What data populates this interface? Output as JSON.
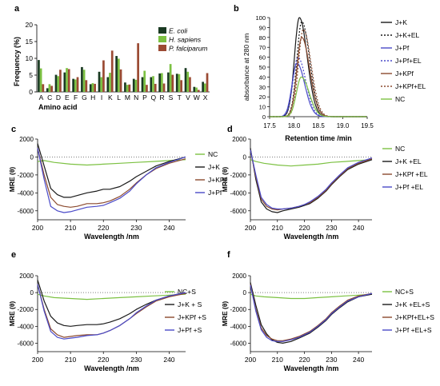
{
  "colors": {
    "ecoli": "#1a3a22",
    "hsap": "#7cc142",
    "pfal": "#9b4a33",
    "black": "#1a1a1a",
    "pf": "#4a4ac8",
    "kpf": "#8b4a2e",
    "nc": "#7cc142",
    "axis": "#000000"
  },
  "chart_data": [
    {
      "panel": "a",
      "type": "bar",
      "xlabel": "Amino acid",
      "ylabel": "Frequency (%)",
      "ylim": [
        0,
        20
      ],
      "yticks": [
        0,
        5,
        10,
        15,
        20
      ],
      "categories": [
        "A",
        "C",
        "D",
        "E",
        "F",
        "G",
        "H",
        "I",
        "K",
        "L",
        "M",
        "N",
        "P",
        "Q",
        "R",
        "S",
        "T",
        "V",
        "W",
        "X"
      ],
      "series": [
        {
          "name": "E. coli",
          "values": [
            9.5,
            1.1,
            5.1,
            5.8,
            3.9,
            7.4,
            2.3,
            6.0,
            4.4,
            10.7,
            2.8,
            3.9,
            4.4,
            4.4,
            5.5,
            5.8,
            5.4,
            7.1,
            1.5,
            3.0
          ]
        },
        {
          "name": "H. sapiens",
          "values": [
            7.0,
            2.3,
            4.7,
            7.1,
            3.7,
            6.6,
            2.6,
            4.4,
            5.7,
            9.9,
            2.1,
            3.6,
            6.3,
            4.7,
            5.6,
            8.3,
            5.3,
            6.0,
            1.3,
            2.5
          ]
        },
        {
          "name": "P. falciparum",
          "values": [
            2.3,
            1.8,
            6.6,
            6.8,
            4.4,
            3.5,
            2.4,
            9.4,
            12.3,
            6.7,
            2.2,
            14.5,
            2.1,
            2.4,
            2.5,
            5.1,
            3.5,
            4.4,
            0.6,
            5.6
          ]
        }
      ]
    },
    {
      "panel": "b",
      "type": "line",
      "xlabel": "Retention time /min",
      "ylabel": "absorbance at 280 nm",
      "xlim": [
        17.5,
        19.5
      ],
      "ylim": [
        0,
        100
      ],
      "xticks": [
        17.5,
        18.0,
        18.5,
        19.0,
        19.5
      ],
      "yticks": [
        0,
        10,
        20,
        30,
        40,
        50,
        60,
        70,
        80,
        90,
        100
      ],
      "series": [
        {
          "name": "J+K",
          "style": "solid",
          "colorKey": "black",
          "peak_x": 18.11,
          "peak_y": 100
        },
        {
          "name": "J+K+EL",
          "style": "dotted",
          "colorKey": "black",
          "peak_x": 18.16,
          "peak_y": 96
        },
        {
          "name": "J+Pf",
          "style": "solid",
          "colorKey": "pf",
          "peak_x": 18.06,
          "peak_y": 54
        },
        {
          "name": "J+Pf+EL",
          "style": "dotted",
          "colorKey": "pf",
          "peak_x": 18.08,
          "peak_y": 60
        },
        {
          "name": "J+KPf",
          "style": "solid",
          "colorKey": "kpf",
          "peak_x": 18.16,
          "peak_y": 80
        },
        {
          "name": "J+KPf+EL",
          "style": "dotted",
          "colorKey": "kpf",
          "peak_x": 18.19,
          "peak_y": 88
        },
        {
          "name": "NC",
          "style": "solid",
          "colorKey": "nc",
          "peak_x": 18.15,
          "peak_y": 40
        }
      ]
    },
    {
      "panel": "c",
      "type": "line",
      "xlabel": "Wavelength /nm",
      "ylabel": "MRE (θ)",
      "xlim": [
        200,
        245
      ],
      "ylim": [
        -7000,
        2000
      ],
      "xticks": [
        200,
        210,
        220,
        230,
        240
      ],
      "yticks": [
        2000,
        0,
        -2000,
        -4000,
        -6000
      ],
      "series": [
        {
          "name": "NC",
          "colorKey": "nc",
          "x": [
            200,
            202,
            205,
            210,
            215,
            220,
            225,
            230,
            235,
            240,
            245
          ],
          "y": [
            -500,
            -400,
            -600,
            -800,
            -900,
            -800,
            -700,
            -600,
            -500,
            -400,
            -300
          ]
        },
        {
          "name": "J+K",
          "colorKey": "black",
          "x": [
            200,
            202,
            204,
            206,
            208,
            210,
            212,
            215,
            218,
            220,
            222,
            225,
            228,
            230,
            233,
            236,
            240,
            245
          ],
          "y": [
            1500,
            -1000,
            -3500,
            -4200,
            -4500,
            -4500,
            -4300,
            -4000,
            -3800,
            -3600,
            -3600,
            -3300,
            -2700,
            -2200,
            -1600,
            -1000,
            -500,
            0
          ]
        },
        {
          "name": "J+KPf",
          "colorKey": "kpf",
          "x": [
            200,
            202,
            204,
            206,
            208,
            210,
            212,
            215,
            218,
            220,
            222,
            225,
            228,
            230,
            233,
            236,
            240,
            245
          ],
          "y": [
            1000,
            -2000,
            -4500,
            -5300,
            -5500,
            -5600,
            -5500,
            -5200,
            -5200,
            -5100,
            -4900,
            -4400,
            -3600,
            -2900,
            -2000,
            -1300,
            -700,
            -200
          ]
        },
        {
          "name": "J+Pf",
          "colorKey": "pf",
          "x": [
            200,
            202,
            204,
            206,
            208,
            210,
            212,
            215,
            218,
            220,
            222,
            225,
            228,
            230,
            233,
            236,
            240,
            245
          ],
          "y": [
            1000,
            -2500,
            -5500,
            -6000,
            -6200,
            -6100,
            -5900,
            -5600,
            -5500,
            -5400,
            -5100,
            -4600,
            -3800,
            -3000,
            -2000,
            -1200,
            -600,
            0
          ]
        }
      ]
    },
    {
      "panel": "d",
      "type": "line",
      "xlabel": "Wavelength /nm",
      "ylabel": "MRE (θ)",
      "xlim": [
        200,
        245
      ],
      "ylim": [
        -7000,
        2000
      ],
      "xticks": [
        200,
        210,
        220,
        230,
        240
      ],
      "yticks": [
        2000,
        0,
        -2000,
        -4000,
        -6000
      ],
      "series": [
        {
          "name": "NC",
          "colorKey": "nc",
          "x": [
            200,
            202,
            205,
            210,
            215,
            220,
            225,
            230,
            235,
            240,
            245
          ],
          "y": [
            -300,
            -500,
            -700,
            -900,
            -1000,
            -900,
            -800,
            -600,
            -500,
            -400,
            -300
          ]
        },
        {
          "name": "J+K +EL",
          "colorKey": "black",
          "x": [
            200,
            202,
            204,
            206,
            208,
            210,
            212,
            215,
            218,
            220,
            222,
            225,
            228,
            230,
            233,
            236,
            240,
            245
          ],
          "y": [
            1000,
            -2500,
            -5000,
            -5800,
            -6100,
            -6200,
            -6000,
            -5800,
            -5600,
            -5400,
            -5200,
            -4600,
            -3800,
            -3100,
            -2200,
            -1400,
            -800,
            -300
          ]
        },
        {
          "name": "J+KPf +EL",
          "colorKey": "kpf",
          "x": [
            200,
            202,
            204,
            206,
            208,
            210,
            212,
            215,
            218,
            220,
            222,
            225,
            228,
            230,
            233,
            236,
            240,
            245
          ],
          "y": [
            800,
            -2200,
            -4700,
            -5500,
            -5800,
            -5900,
            -5800,
            -5700,
            -5500,
            -5300,
            -5100,
            -4500,
            -3700,
            -3000,
            -2100,
            -1300,
            -700,
            -200
          ]
        },
        {
          "name": "J+Pf +EL",
          "colorKey": "pf",
          "x": [
            200,
            202,
            204,
            206,
            208,
            210,
            212,
            215,
            218,
            220,
            222,
            225,
            228,
            230,
            233,
            236,
            240,
            245
          ],
          "y": [
            800,
            -2000,
            -4500,
            -5300,
            -5700,
            -5800,
            -5800,
            -5700,
            -5500,
            -5300,
            -5000,
            -4400,
            -3600,
            -2900,
            -2000,
            -1200,
            -600,
            -100
          ]
        }
      ]
    },
    {
      "panel": "e",
      "type": "line",
      "xlabel": "Wavelength /nm",
      "ylabel": "MRE (θ)",
      "xlim": [
        200,
        245
      ],
      "ylim": [
        -7000,
        2000
      ],
      "xticks": [
        200,
        210,
        220,
        230,
        240
      ],
      "yticks": [
        2000,
        0,
        -2000,
        -4000,
        -6000
      ],
      "series": [
        {
          "name": "NC+S",
          "colorKey": "nc",
          "x": [
            200,
            202,
            205,
            210,
            215,
            220,
            225,
            230,
            235,
            240,
            245
          ],
          "y": [
            -200,
            -400,
            -600,
            -700,
            -800,
            -700,
            -600,
            -500,
            -400,
            -300,
            -200
          ]
        },
        {
          "name": "J+K + S",
          "colorKey": "black",
          "x": [
            200,
            202,
            204,
            206,
            208,
            210,
            212,
            215,
            218,
            220,
            222,
            225,
            228,
            230,
            233,
            236,
            240,
            245
          ],
          "y": [
            1500,
            -1000,
            -2800,
            -3600,
            -3900,
            -4000,
            -3900,
            -3800,
            -3800,
            -3700,
            -3500,
            -3100,
            -2500,
            -2000,
            -1400,
            -900,
            -400,
            0
          ]
        },
        {
          "name": "J+KPf +S",
          "colorKey": "kpf",
          "x": [
            200,
            202,
            204,
            206,
            208,
            210,
            212,
            215,
            218,
            220,
            222,
            225,
            228,
            230,
            233,
            236,
            240,
            245
          ],
          "y": [
            1000,
            -2000,
            -4300,
            -5000,
            -5300,
            -5200,
            -5100,
            -5000,
            -5000,
            -4800,
            -4500,
            -3900,
            -3100,
            -2500,
            -1700,
            -1000,
            -500,
            -100
          ]
        },
        {
          "name": "J+Pf +S",
          "colorKey": "pf",
          "x": [
            200,
            202,
            204,
            206,
            208,
            210,
            212,
            215,
            218,
            220,
            222,
            225,
            228,
            230,
            233,
            236,
            240,
            245
          ],
          "y": [
            1000,
            -2200,
            -4600,
            -5300,
            -5500,
            -5400,
            -5300,
            -5100,
            -5000,
            -4800,
            -4500,
            -3900,
            -3100,
            -2400,
            -1600,
            -900,
            -400,
            0
          ]
        }
      ]
    },
    {
      "panel": "f",
      "type": "line",
      "xlabel": "Wavelength /nm",
      "ylabel": "MRE (θ)",
      "xlim": [
        200,
        245
      ],
      "ylim": [
        -7000,
        2000
      ],
      "xticks": [
        200,
        210,
        220,
        230,
        240
      ],
      "yticks": [
        2000,
        0,
        -2000,
        -4000,
        -6000
      ],
      "series": [
        {
          "name": "NC+S",
          "colorKey": "nc",
          "x": [
            200,
            202,
            205,
            210,
            215,
            220,
            225,
            230,
            235,
            240,
            245
          ],
          "y": [
            -200,
            -400,
            -500,
            -600,
            -700,
            -700,
            -600,
            -500,
            -400,
            -300,
            -200
          ]
        },
        {
          "name": "J+K +EL+S",
          "colorKey": "black",
          "x": [
            200,
            202,
            204,
            206,
            208,
            210,
            212,
            215,
            218,
            220,
            222,
            225,
            228,
            230,
            233,
            236,
            240,
            245
          ],
          "y": [
            1200,
            -1500,
            -3800,
            -4900,
            -5600,
            -5900,
            -6000,
            -5800,
            -5400,
            -5100,
            -4800,
            -4100,
            -3300,
            -2600,
            -1800,
            -1100,
            -500,
            -200
          ]
        },
        {
          "name": "J+KPf+EL+S",
          "colorKey": "kpf",
          "x": [
            200,
            202,
            204,
            206,
            208,
            210,
            212,
            215,
            218,
            220,
            222,
            225,
            228,
            230,
            233,
            236,
            240,
            245
          ],
          "y": [
            1000,
            -2000,
            -4200,
            -5100,
            -5500,
            -5700,
            -5700,
            -5500,
            -5200,
            -4900,
            -4600,
            -3900,
            -3100,
            -2400,
            -1600,
            -900,
            -400,
            -100
          ]
        },
        {
          "name": "J+Pf +EL+S",
          "colorKey": "pf",
          "x": [
            200,
            202,
            204,
            206,
            208,
            210,
            212,
            215,
            218,
            220,
            222,
            225,
            228,
            230,
            233,
            236,
            240,
            245
          ],
          "y": [
            900,
            -2200,
            -4400,
            -5300,
            -5700,
            -5800,
            -5800,
            -5600,
            -5300,
            -5000,
            -4700,
            -4000,
            -3200,
            -2500,
            -1700,
            -1000,
            -500,
            -100
          ]
        }
      ]
    }
  ]
}
